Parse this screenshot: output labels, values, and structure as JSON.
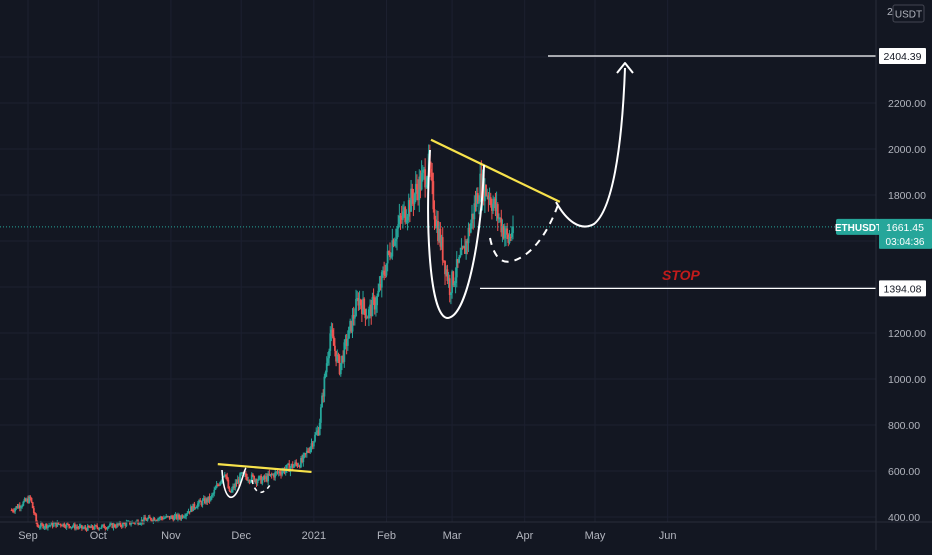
{
  "chart_data": {
    "type": "candlestick",
    "symbol": "ETHUSDT",
    "currency": "USDT",
    "last_price": "1661.45",
    "countdown": "03:04:36",
    "ylim": [
      400,
      2600
    ],
    "y_ticks": [
      400,
      600,
      800,
      1000,
      1200,
      1400,
      1600,
      1800,
      2000,
      2200,
      2400
    ],
    "y_tick_labels": [
      "400.00",
      "600.00",
      "800.00",
      "1000.00",
      "1200.00",
      "1400.00",
      "1600.00",
      "1800.00",
      "2000.00",
      "2200.00",
      "2400.00"
    ],
    "top_partial_label": "2",
    "x_ticks": [
      {
        "label": "Sep",
        "date": "2020-09-01"
      },
      {
        "label": "Oct",
        "date": "2020-10-01"
      },
      {
        "label": "Nov",
        "date": "2020-11-01"
      },
      {
        "label": "Dec",
        "date": "2020-12-01"
      },
      {
        "label": "2021",
        "date": "2021-01-01"
      },
      {
        "label": "Feb",
        "date": "2021-02-01"
      },
      {
        "label": "Mar",
        "date": "2021-03-01"
      },
      {
        "label": "Apr",
        "date": "2021-04-01"
      },
      {
        "label": "May",
        "date": "2021-05-01"
      },
      {
        "label": "Jun",
        "date": "2021-06-01"
      }
    ],
    "x_range": [
      "2020-08-25",
      "2021-07-20"
    ],
    "price_path": [
      [
        "2020-08-25",
        430
      ],
      [
        "2020-09-02",
        480
      ],
      [
        "2020-09-05",
        360
      ],
      [
        "2020-09-15",
        370
      ],
      [
        "2020-09-25",
        350
      ],
      [
        "2020-10-10",
        365
      ],
      [
        "2020-10-25",
        395
      ],
      [
        "2020-11-05",
        400
      ],
      [
        "2020-11-12",
        455
      ],
      [
        "2020-11-18",
        480
      ],
      [
        "2020-11-24",
        600
      ],
      [
        "2020-11-26",
        500
      ],
      [
        "2020-12-01",
        580
      ],
      [
        "2020-12-10",
        560
      ],
      [
        "2020-12-18",
        600
      ],
      [
        "2020-12-27",
        640
      ],
      [
        "2021-01-03",
        780
      ],
      [
        "2021-01-08",
        1200
      ],
      [
        "2021-01-12",
        1050
      ],
      [
        "2021-01-20",
        1350
      ],
      [
        "2021-01-24",
        1280
      ],
      [
        "2021-01-28",
        1350
      ],
      [
        "2021-02-04",
        1620
      ],
      [
        "2021-02-10",
        1750
      ],
      [
        "2021-02-19",
        1920
      ],
      [
        "2021-02-22",
        1700
      ],
      [
        "2021-02-28",
        1400
      ],
      [
        "2021-03-06",
        1550
      ],
      [
        "2021-03-13",
        1850
      ],
      [
        "2021-03-17",
        1800
      ],
      [
        "2021-03-21",
        1700
      ],
      [
        "2021-03-25",
        1600
      ],
      [
        "2021-03-27",
        1661
      ]
    ],
    "annotations": {
      "target_price": 2404.39,
      "target_label": "2404.39",
      "stop_price": 1394.08,
      "stop_label": "1394.08",
      "stop_text": "STOP",
      "major_trendline": [
        [
          "2021-02-20",
          2040
        ],
        [
          "2021-04-16",
          1770
        ]
      ],
      "minor_trendline": [
        [
          "2020-11-21",
          630
        ],
        [
          "2020-12-31",
          596
        ]
      ]
    },
    "colors": {
      "background": "#131722",
      "up": "#26a69a",
      "down": "#ef5350",
      "trendline": "#f7e24b",
      "current_price": "#26a69a",
      "stop_text": "#c11b1b",
      "axis_text": "#b2b5be",
      "grid": "#1c2030"
    },
    "grid": true
  }
}
